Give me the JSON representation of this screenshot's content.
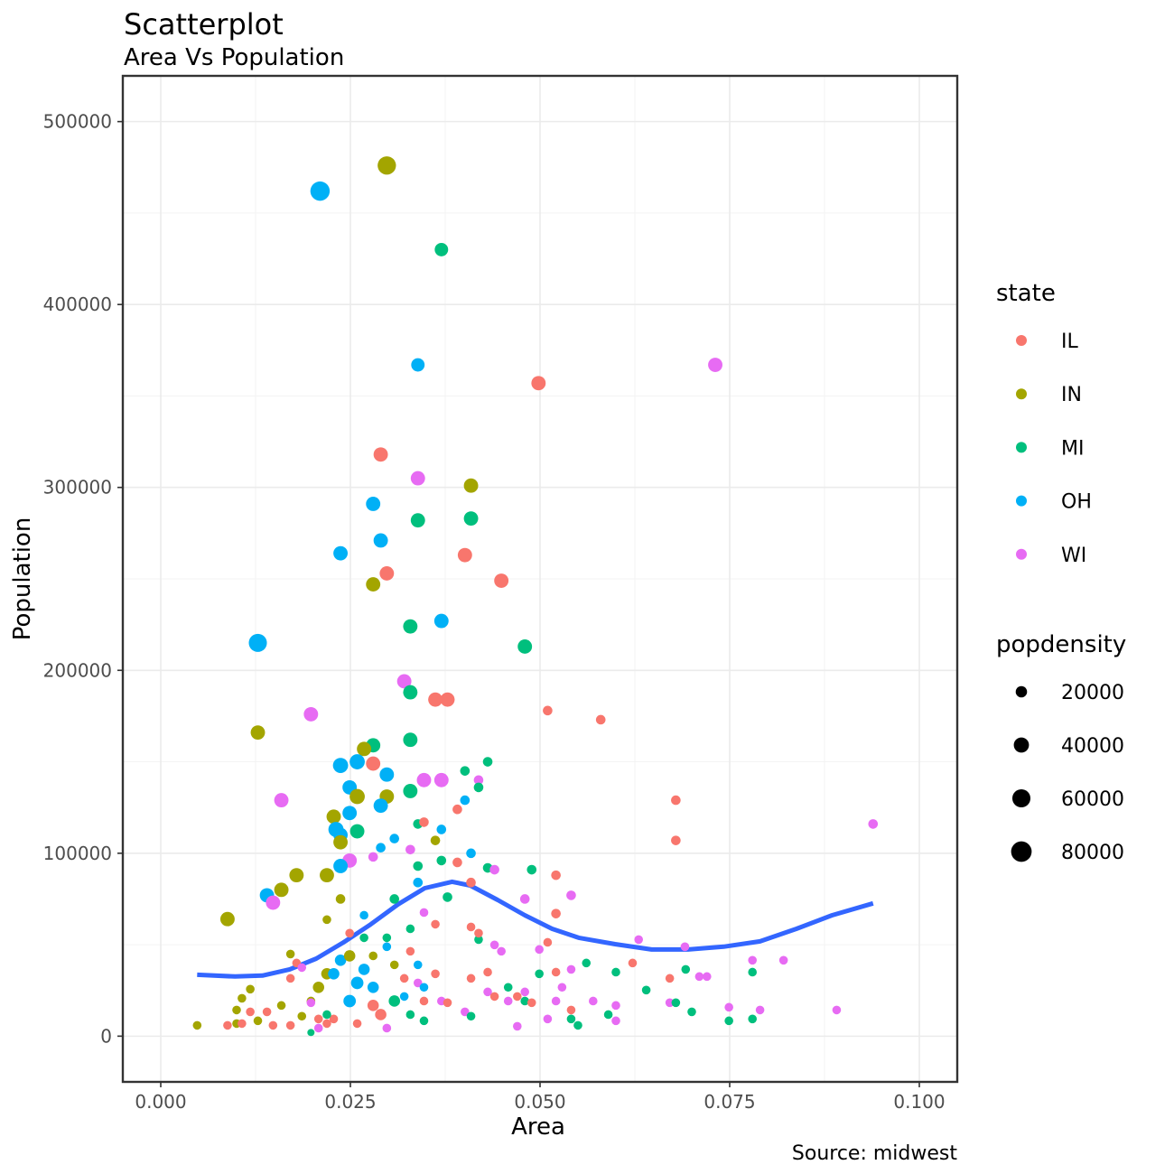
{
  "chart_data": {
    "type": "scatter",
    "title": "Scatterplot",
    "subtitle": "Area Vs Population",
    "xlabel": "Area",
    "ylabel": "Population",
    "caption": "Source: midwest",
    "xlim": [
      -0.005,
      0.105
    ],
    "ylim": [
      -25000,
      525000
    ],
    "xticks": [
      0,
      0.025,
      0.05,
      0.075,
      0.1
    ],
    "xtick_labels": [
      "0.000",
      "0.025",
      "0.050",
      "0.075",
      "0.100"
    ],
    "yticks": [
      0,
      100000,
      200000,
      300000,
      400000,
      500000
    ],
    "ytick_labels": [
      "0",
      "100000",
      "200000",
      "300000",
      "400000",
      "500000"
    ],
    "grid": true,
    "legend_position": "right",
    "state_legend": {
      "title": "state",
      "entries": [
        {
          "label": "IL",
          "color": "#F8766D"
        },
        {
          "label": "IN",
          "color": "#A3A500"
        },
        {
          "label": "MI",
          "color": "#00BF7D"
        },
        {
          "label": "OH",
          "color": "#00B0F6"
        },
        {
          "label": "WI",
          "color": "#E76BF3"
        }
      ]
    },
    "size_legend": {
      "title": "popdensity",
      "values": [
        20000,
        40000,
        60000,
        80000
      ],
      "labels": [
        "20000",
        "40000",
        "60000",
        "80000"
      ]
    },
    "smooth_color": "#3366FF",
    "smooth": [
      [
        0.0048,
        33560
      ],
      [
        0.0098,
        32600
      ],
      [
        0.0134,
        33100
      ],
      [
        0.017,
        36500
      ],
      [
        0.0205,
        42400
      ],
      [
        0.0241,
        51300
      ],
      [
        0.0277,
        61200
      ],
      [
        0.0313,
        72100
      ],
      [
        0.0348,
        80900
      ],
      [
        0.0384,
        84400
      ],
      [
        0.0408,
        82400
      ],
      [
        0.0444,
        74500
      ],
      [
        0.048,
        66100
      ],
      [
        0.0516,
        58700
      ],
      [
        0.0551,
        53800
      ],
      [
        0.0599,
        50300
      ],
      [
        0.0647,
        47400
      ],
      [
        0.0695,
        47400
      ],
      [
        0.0742,
        48900
      ],
      [
        0.079,
        51800
      ],
      [
        0.0838,
        58700
      ],
      [
        0.0885,
        66100
      ],
      [
        0.0939,
        72600
      ]
    ],
    "point_fields": [
      "state",
      "area",
      "population",
      "popdensity"
    ],
    "points": [
      [
        "OH",
        0.021,
        462000,
        70000
      ],
      [
        "IN",
        0.0298,
        476000,
        62000
      ],
      [
        "MI",
        0.037,
        430000,
        30000
      ],
      [
        "OH",
        0.0339,
        367000,
        30000
      ],
      [
        "WI",
        0.0731,
        367000,
        35000
      ],
      [
        "IL",
        0.0498,
        357000,
        35000
      ],
      [
        "IL",
        0.029,
        318000,
        35000
      ],
      [
        "WI",
        0.0339,
        305000,
        35000
      ],
      [
        "IN",
        0.0409,
        301000,
        35000
      ],
      [
        "OH",
        0.028,
        291000,
        35000
      ],
      [
        "MI",
        0.0339,
        282000,
        35000
      ],
      [
        "MI",
        0.0409,
        283000,
        35000
      ],
      [
        "OH",
        0.029,
        271000,
        35000
      ],
      [
        "OH",
        0.0237,
        264000,
        35000
      ],
      [
        "IL",
        0.0401,
        263000,
        35000
      ],
      [
        "IL",
        0.0298,
        253000,
        35000
      ],
      [
        "IL",
        0.0449,
        249000,
        35000
      ],
      [
        "IN",
        0.028,
        247000,
        35000
      ],
      [
        "OH",
        0.037,
        227000,
        35000
      ],
      [
        "MI",
        0.0329,
        224000,
        35000
      ],
      [
        "OH",
        0.0128,
        215000,
        60000
      ],
      [
        "MI",
        0.048,
        213000,
        35000
      ],
      [
        "WI",
        0.0321,
        194000,
        35000
      ],
      [
        "MI",
        0.0329,
        188000,
        35000
      ],
      [
        "IL",
        0.0362,
        184000,
        35000
      ],
      [
        "IL",
        0.0378,
        184000,
        35000
      ],
      [
        "IL",
        0.051,
        178000,
        13000
      ],
      [
        "WI",
        0.0198,
        176000,
        35000
      ],
      [
        "IL",
        0.058,
        173000,
        13000
      ],
      [
        "IN",
        0.0128,
        166000,
        35000
      ],
      [
        "MI",
        0.0329,
        162000,
        35000
      ],
      [
        "MI",
        0.028,
        159000,
        35000
      ],
      [
        "IN",
        0.0268,
        157000,
        35000
      ],
      [
        "MI",
        0.0431,
        150000,
        13000
      ],
      [
        "IL",
        0.028,
        149000,
        35000
      ],
      [
        "OH",
        0.0237,
        148000,
        40000
      ],
      [
        "OH",
        0.0259,
        150000,
        40000
      ],
      [
        "OH",
        0.0298,
        143000,
        35000
      ],
      [
        "MI",
        0.0401,
        145000,
        13000
      ],
      [
        "WI",
        0.0347,
        140000,
        35000
      ],
      [
        "WI",
        0.037,
        140000,
        35000
      ],
      [
        "WI",
        0.0419,
        140000,
        13000
      ],
      [
        "MI",
        0.0419,
        136000,
        13000
      ],
      [
        "MI",
        0.0329,
        134000,
        35000
      ],
      [
        "OH",
        0.0249,
        136000,
        35000
      ],
      [
        "IN",
        0.0259,
        131000,
        40000
      ],
      [
        "IN",
        0.0298,
        131000,
        35000
      ],
      [
        "WI",
        0.0159,
        129000,
        35000
      ],
      [
        "IL",
        0.0679,
        129000,
        13000
      ],
      [
        "OH",
        0.0401,
        129000,
        13000
      ],
      [
        "OH",
        0.029,
        126000,
        35000
      ],
      [
        "IL",
        0.0391,
        124000,
        13000
      ],
      [
        "OH",
        0.0249,
        122000,
        35000
      ],
      [
        "IN",
        0.0228,
        120000,
        35000
      ],
      [
        "MI",
        0.0339,
        116000,
        13000
      ],
      [
        "IL",
        0.0347,
        117000,
        13000
      ],
      [
        "WI",
        0.0939,
        116000,
        13000
      ],
      [
        "OH",
        0.037,
        113000,
        13000
      ],
      [
        "OH",
        0.0231,
        113000,
        40000
      ],
      [
        "MI",
        0.0259,
        112000,
        35000
      ],
      [
        "OH",
        0.0237,
        110000,
        35000
      ],
      [
        "IN",
        0.0237,
        106000,
        35000
      ],
      [
        "IN",
        0.0362,
        107000,
        13000
      ],
      [
        "IL",
        0.0679,
        107000,
        13000
      ],
      [
        "OH",
        0.0308,
        108000,
        13000
      ],
      [
        "OH",
        0.029,
        103000,
        13000
      ],
      [
        "WI",
        0.0329,
        102000,
        13000
      ],
      [
        "WI",
        0.028,
        98000,
        13000
      ],
      [
        "OH",
        0.0409,
        100000,
        13000
      ],
      [
        "WI",
        0.0249,
        96000,
        35000
      ],
      [
        "MI",
        0.037,
        96000,
        13000
      ],
      [
        "IL",
        0.0391,
        95000,
        13000
      ],
      [
        "OH",
        0.0237,
        93000,
        35000
      ],
      [
        "MI",
        0.0339,
        93000,
        13000
      ],
      [
        "MI",
        0.0431,
        92000,
        13000
      ],
      [
        "WI",
        0.044,
        91000,
        13000
      ],
      [
        "MI",
        0.0489,
        91000,
        13000
      ],
      [
        "IN",
        0.0179,
        88000,
        35000
      ],
      [
        "IN",
        0.0219,
        88000,
        35000
      ],
      [
        "IL",
        0.0521,
        88000,
        13000
      ],
      [
        "OH",
        0.0339,
        84000,
        13000
      ],
      [
        "IL",
        0.0409,
        84000,
        13000
      ],
      [
        "IN",
        0.0159,
        80000,
        35000
      ],
      [
        "OH",
        0.014,
        77000,
        35000
      ],
      [
        "WI",
        0.0541,
        77000,
        13000
      ],
      [
        "MI",
        0.0378,
        76000,
        13000
      ],
      [
        "IN",
        0.0237,
        75000,
        13000
      ],
      [
        "WI",
        0.0148,
        73000,
        35000
      ],
      [
        "WI",
        0.048,
        75000,
        13000
      ],
      [
        "MI",
        0.0308,
        75000,
        13000
      ],
      [
        "IN",
        0.0088,
        64000,
        35000
      ],
      [
        "IL",
        0.0521,
        67000,
        13000
      ],
      [
        "IN",
        0.0048,
        5900,
        10000
      ],
      [
        "IL",
        0.0088,
        5900,
        10000
      ],
      [
        "IN",
        0.01,
        6900,
        10000
      ],
      [
        "IL",
        0.0107,
        6900,
        10000
      ],
      [
        "IN",
        0.0107,
        20700,
        10000
      ],
      [
        "IN",
        0.0118,
        25700,
        10000
      ],
      [
        "IL",
        0.0118,
        13300,
        10000
      ],
      [
        "IN",
        0.01,
        14300,
        10000
      ],
      [
        "IL",
        0.014,
        13300,
        10000
      ],
      [
        "IN",
        0.0128,
        8400,
        10000
      ],
      [
        "IL",
        0.0148,
        5900,
        10000
      ],
      [
        "IN",
        0.0159,
        16800,
        10000
      ],
      [
        "IL",
        0.0171,
        31600,
        10000
      ],
      [
        "IN",
        0.0171,
        44900,
        10000
      ],
      [
        "IL",
        0.0171,
        5900,
        10000
      ],
      [
        "IL",
        0.0179,
        40000,
        10000
      ],
      [
        "WI",
        0.0186,
        37500,
        10000
      ],
      [
        "IN",
        0.0186,
        10900,
        10000
      ],
      [
        "IN",
        0.0198,
        19200,
        10000
      ],
      [
        "IL",
        0.0208,
        9400,
        10000
      ],
      [
        "WI",
        0.0198,
        18300,
        10000
      ],
      [
        "MI",
        0.0198,
        2000,
        6000
      ],
      [
        "IN",
        0.0208,
        26700,
        20000
      ],
      [
        "IL",
        0.0219,
        6900,
        10000
      ],
      [
        "IN",
        0.0219,
        34100,
        20000
      ],
      [
        "WI",
        0.0208,
        4400,
        10000
      ],
      [
        "IN",
        0.0219,
        63700,
        10000
      ],
      [
        "IL",
        0.0228,
        9400,
        10000
      ],
      [
        "MI",
        0.0219,
        11800,
        10000
      ],
      [
        "OH",
        0.0228,
        34100,
        20000
      ],
      [
        "OH",
        0.0237,
        41500,
        20000
      ],
      [
        "IL",
        0.0249,
        56300,
        10000
      ],
      [
        "IN",
        0.0249,
        43900,
        20000
      ],
      [
        "OH",
        0.0259,
        29100,
        25000
      ],
      [
        "OH",
        0.0249,
        19200,
        25000
      ],
      [
        "OH",
        0.0268,
        36500,
        20000
      ],
      [
        "IL",
        0.0259,
        6900,
        10000
      ],
      [
        "MI",
        0.0268,
        53800,
        10000
      ],
      [
        "OH",
        0.0268,
        66100,
        10000
      ],
      [
        "IN",
        0.028,
        43900,
        10000
      ],
      [
        "OH",
        0.028,
        26700,
        20000
      ],
      [
        "IL",
        0.028,
        16800,
        20000
      ],
      [
        "IL",
        0.029,
        11800,
        20000
      ],
      [
        "WI",
        0.0298,
        4400,
        10000
      ],
      [
        "MI",
        0.0298,
        53800,
        10000
      ],
      [
        "OH",
        0.0298,
        48900,
        10000
      ],
      [
        "IN",
        0.0308,
        39000,
        10000
      ],
      [
        "MI",
        0.0308,
        19200,
        20000
      ],
      [
        "IL",
        0.0321,
        31600,
        10000
      ],
      [
        "OH",
        0.0321,
        21700,
        10000
      ],
      [
        "MI",
        0.0329,
        11800,
        10000
      ],
      [
        "MI",
        0.0329,
        58700,
        10000
      ],
      [
        "IL",
        0.0329,
        46400,
        10000
      ],
      [
        "OH",
        0.0339,
        39000,
        10000
      ],
      [
        "WI",
        0.0339,
        29100,
        10000
      ],
      [
        "IL",
        0.0347,
        19200,
        10000
      ],
      [
        "MI",
        0.0347,
        8400,
        10000
      ],
      [
        "WI",
        0.0347,
        67600,
        10000
      ],
      [
        "OH",
        0.0347,
        26700,
        10000
      ],
      [
        "IL",
        0.0362,
        61200,
        10000
      ],
      [
        "IL",
        0.0362,
        34100,
        10000
      ],
      [
        "WI",
        0.037,
        19200,
        10000
      ],
      [
        "IL",
        0.0378,
        18300,
        10000
      ],
      [
        "IL",
        0.0409,
        59700,
        10000
      ],
      [
        "WI",
        0.0401,
        13300,
        10000
      ],
      [
        "MI",
        0.0409,
        10900,
        10000
      ],
      [
        "IL",
        0.0409,
        31600,
        10000
      ],
      [
        "MI",
        0.0419,
        52800,
        10000
      ],
      [
        "IL",
        0.0419,
        56300,
        10000
      ],
      [
        "IL",
        0.0431,
        35000,
        10000
      ],
      [
        "WI",
        0.0431,
        24200,
        10000
      ],
      [
        "IL",
        0.044,
        21700,
        10000
      ],
      [
        "WI",
        0.044,
        49900,
        10000
      ],
      [
        "WI",
        0.0449,
        46400,
        10000
      ],
      [
        "MI",
        0.0458,
        26700,
        10000
      ],
      [
        "WI",
        0.0458,
        19200,
        10000
      ],
      [
        "WI",
        0.047,
        5400,
        10000
      ],
      [
        "IL",
        0.047,
        21700,
        10000
      ],
      [
        "WI",
        0.048,
        24200,
        10000
      ],
      [
        "MI",
        0.048,
        19200,
        10000
      ],
      [
        "IL",
        0.0489,
        18300,
        10000
      ],
      [
        "WI",
        0.0499,
        47400,
        10000
      ],
      [
        "IL",
        0.051,
        51300,
        10000
      ],
      [
        "MI",
        0.0499,
        34100,
        10000
      ],
      [
        "WI",
        0.051,
        9400,
        10000
      ],
      [
        "IL",
        0.0521,
        35000,
        10000
      ],
      [
        "WI",
        0.0521,
        19200,
        10000
      ],
      [
        "MI",
        0.0541,
        9400,
        10000
      ],
      [
        "WI",
        0.0529,
        26700,
        10000
      ],
      [
        "WI",
        0.0541,
        36500,
        10000
      ],
      [
        "MI",
        0.055,
        5900,
        10000
      ],
      [
        "IL",
        0.0541,
        14300,
        10000
      ],
      [
        "MI",
        0.0561,
        40000,
        10000
      ],
      [
        "WI",
        0.057,
        19200,
        10000
      ],
      [
        "IL",
        0.0622,
        40000,
        10000
      ],
      [
        "MI",
        0.06,
        35000,
        10000
      ],
      [
        "WI",
        0.06,
        16800,
        10000
      ],
      [
        "WI",
        0.06,
        8400,
        10000
      ],
      [
        "MI",
        0.059,
        11800,
        10000
      ],
      [
        "WI",
        0.063,
        52800,
        10000
      ],
      [
        "MI",
        0.064,
        25200,
        10000
      ],
      [
        "IL",
        0.0671,
        31600,
        10000
      ],
      [
        "WI",
        0.0671,
        18300,
        10000
      ],
      [
        "MI",
        0.0679,
        18300,
        10000
      ],
      [
        "MI",
        0.0692,
        36500,
        10000
      ],
      [
        "MI",
        0.07,
        13300,
        10000
      ],
      [
        "WI",
        0.071,
        32600,
        10000
      ],
      [
        "WI",
        0.072,
        32600,
        10000
      ],
      [
        "WI",
        0.0749,
        15800,
        10000
      ],
      [
        "MI",
        0.0749,
        8400,
        10000
      ],
      [
        "MI",
        0.078,
        35000,
        10000
      ],
      [
        "WI",
        0.078,
        41500,
        10000
      ],
      [
        "MI",
        0.078,
        9400,
        10000
      ],
      [
        "WI",
        0.079,
        14300,
        10000
      ],
      [
        "WI",
        0.0821,
        41500,
        10000
      ],
      [
        "WI",
        0.0891,
        14300,
        10000
      ],
      [
        "WI",
        0.0691,
        48900,
        10000
      ]
    ]
  }
}
